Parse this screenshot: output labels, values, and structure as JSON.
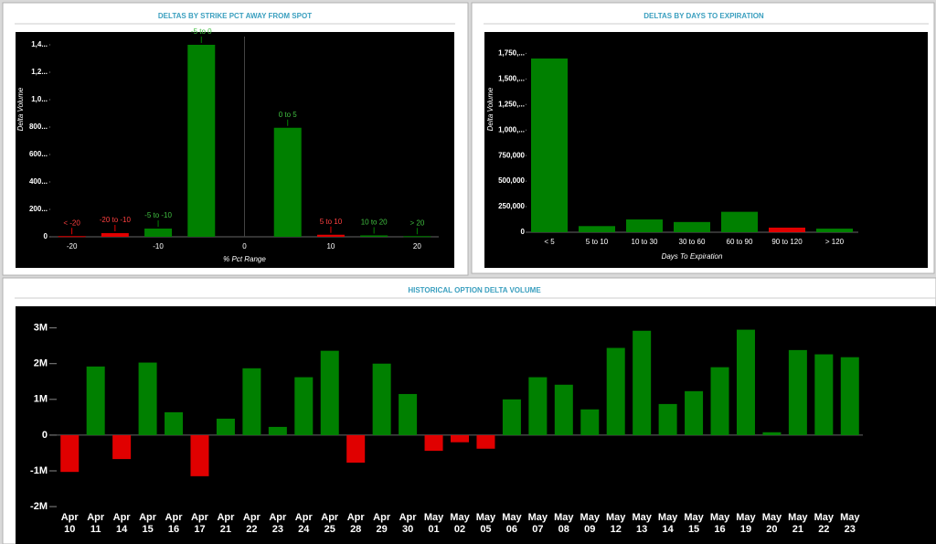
{
  "chart_data": [
    {
      "type": "bar",
      "title": "DELTAS BY STRIKE PCT AWAY FROM SPOT",
      "xlabel": "% Pct Range",
      "ylabel": "Delta Volume",
      "categories": [
        "< -20",
        "-20 to -10",
        "-5 to -10",
        "-5 to 0",
        "0 to 5",
        "5 to 10",
        "10 to 20",
        "> 20"
      ],
      "x": [
        -20,
        -15,
        -10,
        -5,
        5,
        10,
        15,
        20
      ],
      "values": [
        5,
        27,
        60,
        1400,
        795,
        15,
        10,
        5
      ],
      "colors": [
        "#e00000",
        "#e00000",
        "#008000",
        "#008000",
        "#008000",
        "#e00000",
        "#008000",
        "#008000"
      ],
      "xlim": [
        -22.5,
        22.5
      ],
      "xticks": [
        -20,
        -10,
        0,
        10,
        20
      ],
      "ylim": [
        0,
        1460
      ],
      "yticks": [
        0,
        {
          "value": 200,
          "label": "200..."
        },
        {
          "value": 400,
          "label": "400..."
        },
        {
          "value": 600,
          "label": "600..."
        },
        {
          "value": 800,
          "label": "800..."
        },
        {
          "value": 1000,
          "label": "1,0..."
        },
        {
          "value": 1200,
          "label": "1,2..."
        },
        {
          "value": 1400,
          "label": "1,4..."
        }
      ]
    },
    {
      "type": "bar",
      "title": "DELTAS BY DAYS TO EXPIRATION",
      "xlabel": "Days To Expiration",
      "ylabel": "Delta Volume",
      "categories": [
        "< 5",
        "5 to 10",
        "10 to 30",
        "30 to 60",
        "60 to 90",
        "90 to 120",
        "> 120"
      ],
      "values": [
        1700000,
        60000,
        125000,
        100000,
        200000,
        45000,
        35000
      ],
      "colors": [
        "#008000",
        "#008000",
        "#008000",
        "#008000",
        "#008000",
        "#e00000",
        "#008000"
      ],
      "ylim": [
        0,
        1870000
      ],
      "yticks": [
        0,
        {
          "value": 250000,
          "label": "250,000"
        },
        {
          "value": 500000,
          "label": "500,000"
        },
        {
          "value": 750000,
          "label": "750,000"
        },
        {
          "value": 1000000,
          "label": "1,000,..."
        },
        {
          "value": 1250000,
          "label": "1,250,..."
        },
        {
          "value": 1500000,
          "label": "1,500,..."
        },
        {
          "value": 1750000,
          "label": "1,750,..."
        }
      ]
    },
    {
      "type": "bar",
      "title": "HISTORICAL OPTION DELTA VOLUME",
      "categories": [
        "Apr 10",
        "Apr 11",
        "Apr 14",
        "Apr 15",
        "Apr 16",
        "Apr 17",
        "Apr 21",
        "Apr 22",
        "Apr 23",
        "Apr 24",
        "Apr 25",
        "Apr 28",
        "Apr 29",
        "Apr 30",
        "May 01",
        "May 02",
        "May 05",
        "May 06",
        "May 07",
        "May 08",
        "May 09",
        "May 12",
        "May 13",
        "May 14",
        "May 15",
        "May 16",
        "May 19",
        "May 20",
        "May 21",
        "May 22",
        "May 23"
      ],
      "values": [
        -1030000,
        1920000,
        -670000,
        2030000,
        640000,
        -1150000,
        460000,
        1870000,
        230000,
        1620000,
        2360000,
        -770000,
        2000000,
        1150000,
        -440000,
        -200000,
        -380000,
        1000000,
        1620000,
        1410000,
        720000,
        2440000,
        2920000,
        870000,
        1230000,
        1900000,
        2950000,
        80000,
        2380000,
        2260000,
        2180000
      ],
      "positive_color": "#008000",
      "negative_color": "#e00000",
      "ylim": [
        -2100000,
        3400000
      ],
      "yticks": [
        {
          "value": -2000000,
          "label": "-2M"
        },
        {
          "value": -1000000,
          "label": "-1M"
        },
        0,
        {
          "value": 1000000,
          "label": "1M"
        },
        {
          "value": 2000000,
          "label": "2M"
        },
        {
          "value": 3000000,
          "label": "3M"
        }
      ]
    }
  ]
}
